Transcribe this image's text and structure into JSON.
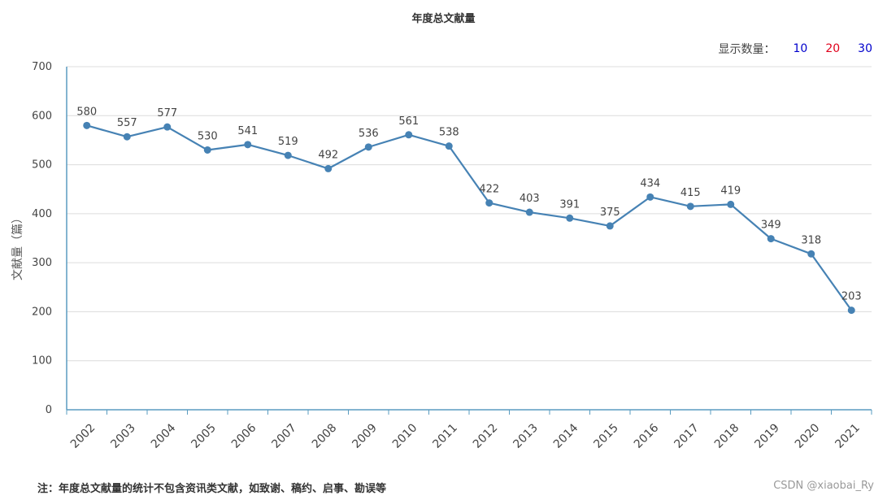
{
  "chart_data": {
    "type": "line",
    "title": "年度总文献量",
    "xlabel": "",
    "ylabel": "文献量（篇）",
    "ylim": [
      0,
      700
    ],
    "yticks": [
      0,
      100,
      200,
      300,
      400,
      500,
      600,
      700
    ],
    "grid": true,
    "categories": [
      "2002",
      "2003",
      "2004",
      "2005",
      "2006",
      "2007",
      "2008",
      "2009",
      "2010",
      "2011",
      "2012",
      "2013",
      "2014",
      "2015",
      "2016",
      "2017",
      "2018",
      "2019",
      "2020",
      "2021"
    ],
    "series": [
      {
        "values": [
          580,
          557,
          577,
          530,
          541,
          519,
          492,
          536,
          561,
          538,
          422,
          403,
          391,
          375,
          434,
          415,
          419,
          349,
          318,
          203
        ],
        "color": "#4682b4"
      }
    ]
  },
  "display_count": {
    "label": "显示数量：",
    "options": [
      {
        "text": "10",
        "color": "#0000cc"
      },
      {
        "text": "20",
        "color": "#e0001b"
      },
      {
        "text": "30",
        "color": "#0000cc"
      }
    ]
  },
  "footnote": "注：年度总文献量的统计不包含资讯类文献，如致谢、稿约、启事、勘误等",
  "watermark": "CSDN @xiaobai_Ry"
}
